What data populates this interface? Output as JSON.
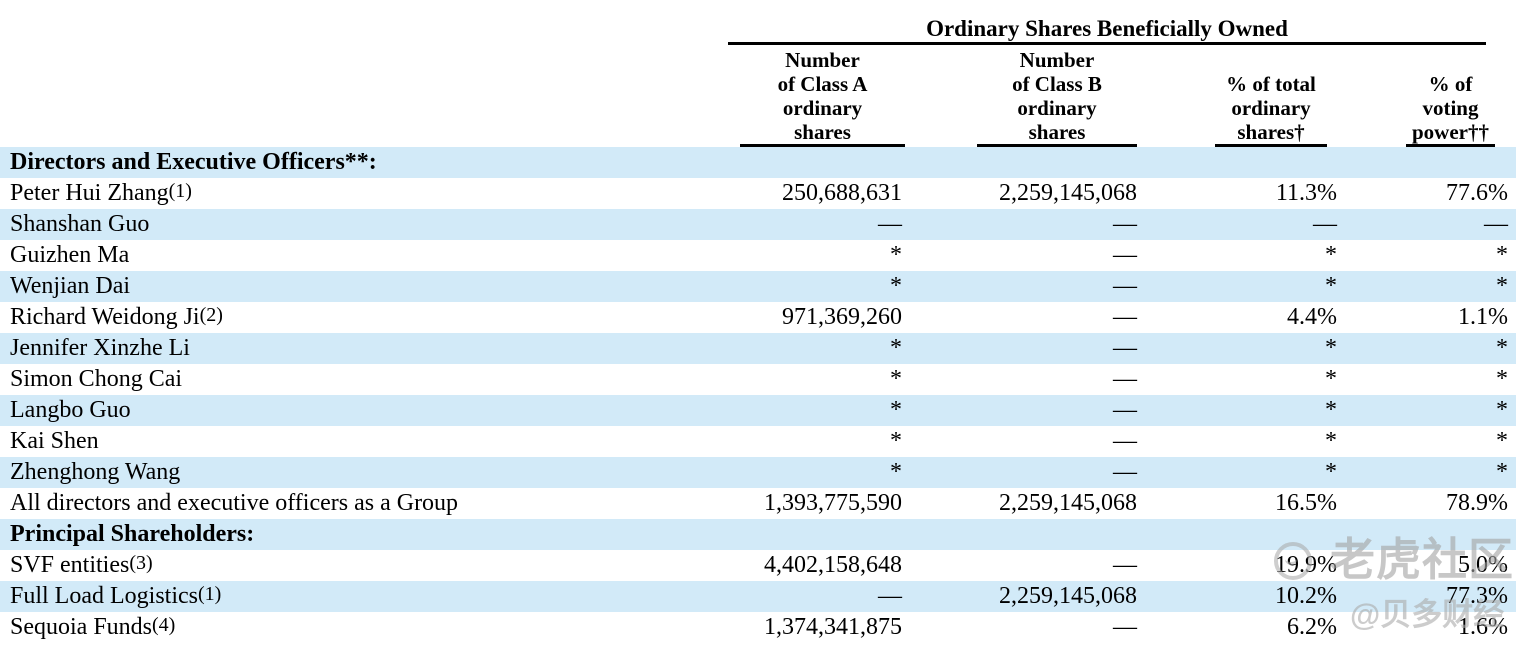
{
  "table": {
    "group_header": "Ordinary Shares Beneficially Owned",
    "columns": [
      {
        "id": "class_a",
        "lines": [
          "Number",
          "of Class A",
          "ordinary",
          "shares"
        ]
      },
      {
        "id": "class_b",
        "lines": [
          "Number",
          "of Class B",
          "ordinary",
          "shares"
        ]
      },
      {
        "id": "pct_total",
        "lines": [
          "% of total",
          "ordinary",
          "shares†"
        ]
      },
      {
        "id": "pct_voting",
        "lines": [
          "% of",
          "voting",
          "power††"
        ]
      }
    ],
    "rows": [
      {
        "type": "section",
        "name": "Directors and Executive Officers**:",
        "footnote": "",
        "class_a": "",
        "class_b": "",
        "pct_total": "",
        "pct_voting": "",
        "shaded": true
      },
      {
        "type": "data",
        "name": "Peter Hui Zhang",
        "footnote": "(1)",
        "class_a": "250,688,631",
        "class_b": "2,259,145,068",
        "pct_total": "11.3%",
        "pct_voting": "77.6%",
        "shaded": false
      },
      {
        "type": "data",
        "name": "Shanshan Guo",
        "footnote": "",
        "class_a": "—",
        "class_b": "—",
        "pct_total": "—",
        "pct_voting": "—",
        "shaded": true
      },
      {
        "type": "data",
        "name": "Guizhen Ma",
        "footnote": "",
        "class_a": "*",
        "class_b": "—",
        "pct_total": "*",
        "pct_voting": "*",
        "shaded": false
      },
      {
        "type": "data",
        "name": "Wenjian Dai",
        "footnote": "",
        "class_a": "*",
        "class_b": "—",
        "pct_total": "*",
        "pct_voting": "*",
        "shaded": true
      },
      {
        "type": "data",
        "name": "Richard Weidong Ji",
        "footnote": "(2)",
        "class_a": "971,369,260",
        "class_b": "—",
        "pct_total": "4.4%",
        "pct_voting": "1.1%",
        "shaded": false
      },
      {
        "type": "data",
        "name": "Jennifer Xinzhe Li",
        "footnote": "",
        "class_a": "*",
        "class_b": "—",
        "pct_total": "*",
        "pct_voting": "*",
        "shaded": true
      },
      {
        "type": "data",
        "name": "Simon Chong Cai",
        "footnote": "",
        "class_a": "*",
        "class_b": "—",
        "pct_total": "*",
        "pct_voting": "*",
        "shaded": false
      },
      {
        "type": "data",
        "name": "Langbo Guo",
        "footnote": "",
        "class_a": "*",
        "class_b": "—",
        "pct_total": "*",
        "pct_voting": "*",
        "shaded": true
      },
      {
        "type": "data",
        "name": "Kai Shen",
        "footnote": "",
        "class_a": "*",
        "class_b": "—",
        "pct_total": "*",
        "pct_voting": "*",
        "shaded": false
      },
      {
        "type": "data",
        "name": "Zhenghong Wang",
        "footnote": "",
        "class_a": "*",
        "class_b": "—",
        "pct_total": "*",
        "pct_voting": "*",
        "shaded": true
      },
      {
        "type": "data",
        "name": "All directors and executive officers as a Group",
        "footnote": "",
        "class_a": "1,393,775,590",
        "class_b": "2,259,145,068",
        "pct_total": "16.5%",
        "pct_voting": "78.9%",
        "shaded": false
      },
      {
        "type": "section",
        "name": "Principal Shareholders:",
        "footnote": "",
        "class_a": "",
        "class_b": "",
        "pct_total": "",
        "pct_voting": "",
        "shaded": true
      },
      {
        "type": "data",
        "name": "SVF entities",
        "footnote": "(3)",
        "class_a": "4,402,158,648",
        "class_b": "—",
        "pct_total": "19.9%",
        "pct_voting": "5.0%",
        "shaded": false
      },
      {
        "type": "data",
        "name": "Full Load Logistics",
        "footnote": "(1)",
        "class_a": "—",
        "class_b": "2,259,145,068",
        "pct_total": "10.2%",
        "pct_voting": "77.3%",
        "shaded": true
      },
      {
        "type": "data",
        "name": "Sequoia Funds",
        "footnote": "(4)",
        "class_a": "1,374,341,875",
        "class_b": "—",
        "pct_total": "6.2%",
        "pct_voting": "1.6%",
        "shaded": false
      }
    ]
  },
  "watermark": {
    "community": "老虎社区",
    "handle": "@贝多财经",
    "color": "#a5a5a5"
  },
  "colors": {
    "row_shaded": "#d2eaf8",
    "text": "#000000",
    "background": "#ffffff"
  }
}
